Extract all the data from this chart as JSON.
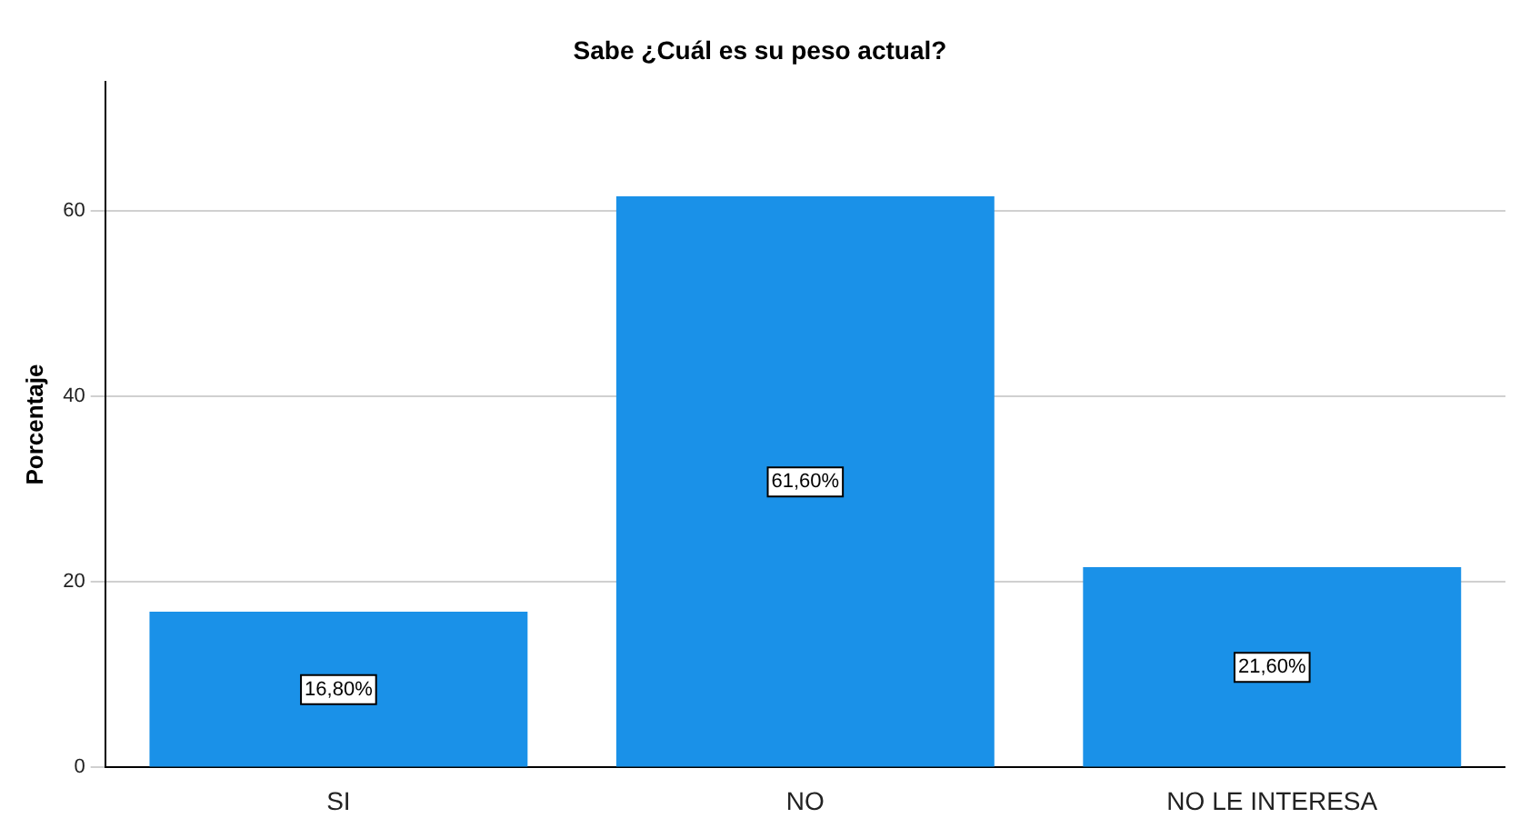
{
  "chart_data": {
    "type": "bar",
    "title": "Sabe ¿Cuál es su peso actual?",
    "ylabel": "Porcentaje",
    "categories": [
      "SI",
      "NO",
      "NO LE INTERESA"
    ],
    "values": [
      16.8,
      61.6,
      21.6
    ],
    "value_labels": [
      "16,80%",
      "61,60%",
      "21,60%"
    ],
    "color": "#1a91e8",
    "ylim": [
      0,
      74
    ],
    "yticks": [
      0,
      20,
      40,
      60
    ],
    "grid": "y",
    "legend": false
  }
}
